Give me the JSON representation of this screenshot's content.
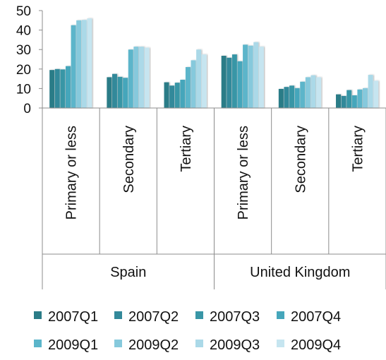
{
  "chart_data": {
    "type": "bar",
    "title": "",
    "xlabel": "",
    "ylabel": "",
    "ylim": [
      0,
      50
    ],
    "yticks": [
      0,
      10,
      20,
      30,
      40,
      50
    ],
    "grid": false,
    "legend_position": "bottom",
    "groups": [
      "Spain",
      "United Kingdom"
    ],
    "categories": [
      "Primary or less",
      "Secondary",
      "Tertiary",
      "Primary or less",
      "Secondary",
      "Tertiary"
    ],
    "series": [
      {
        "name": "2007Q1",
        "color": "#2b7c87",
        "values": [
          19.5,
          15.8,
          13.2,
          26.8,
          9.8,
          7.0
        ]
      },
      {
        "name": "2007Q2",
        "color": "#33899a",
        "values": [
          20.0,
          17.5,
          11.5,
          25.8,
          10.8,
          6.2
        ]
      },
      {
        "name": "2007Q3",
        "color": "#3996a6",
        "values": [
          19.8,
          16.0,
          13.0,
          27.5,
          11.5,
          9.2
        ]
      },
      {
        "name": "2007Q4",
        "color": "#45a6bb",
        "values": [
          21.5,
          15.5,
          14.5,
          24.0,
          10.2,
          6.5
        ]
      },
      {
        "name": "2009Q1",
        "color": "#5bb5ca",
        "values": [
          42.5,
          30.0,
          21.0,
          32.5,
          13.5,
          9.5
        ]
      },
      {
        "name": "2009Q2",
        "color": "#86c9dc",
        "values": [
          45.0,
          31.5,
          24.5,
          32.0,
          15.8,
          10.2
        ]
      },
      {
        "name": "2009Q3",
        "color": "#abd9e8",
        "values": [
          45.2,
          31.5,
          30.0,
          33.8,
          16.8,
          17.0
        ]
      },
      {
        "name": "2009Q4",
        "color": "#c6e5f0",
        "values": [
          46.0,
          31.0,
          27.5,
          31.5,
          15.8,
          14.0
        ]
      }
    ]
  }
}
